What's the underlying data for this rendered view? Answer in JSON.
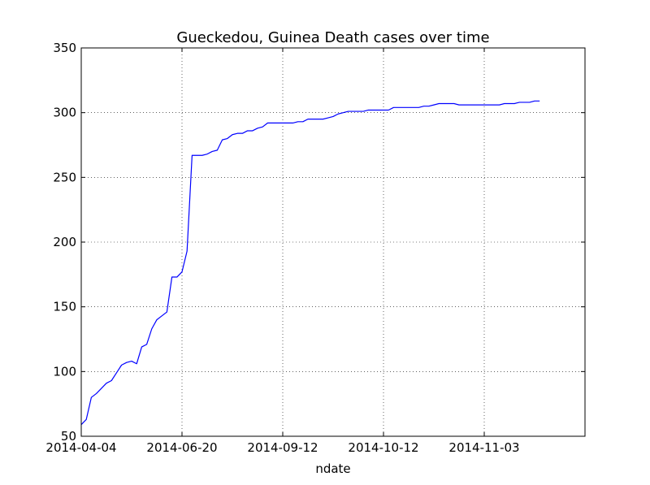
{
  "chart_data": {
    "type": "line",
    "title": "Gueckedou, Guinea Death cases over time",
    "xlabel": "ndate",
    "ylabel": "",
    "ylim": [
      50,
      350
    ],
    "yticks": [
      50,
      100,
      150,
      200,
      250,
      300,
      350
    ],
    "xtick_labels": [
      "2014-04-04",
      "2014-06-20",
      "2014-09-12",
      "2014-10-12",
      "2014-11-03"
    ],
    "xlim": [
      0,
      100
    ],
    "xtick_positions": [
      0,
      20,
      40,
      60,
      80
    ],
    "grid": true,
    "line_color": "#0000ff",
    "series": [
      {
        "x": [
          0,
          1,
          2,
          3,
          4,
          5,
          6,
          7,
          8,
          9,
          10,
          11,
          12,
          13,
          14,
          15,
          16,
          17,
          18,
          19,
          20,
          21,
          22,
          23,
          24,
          25,
          26,
          27,
          28,
          29,
          30,
          31,
          32,
          33,
          34,
          35,
          36,
          37,
          38,
          39,
          40,
          41,
          42,
          43,
          44,
          45,
          46,
          47,
          48,
          49,
          50,
          51,
          52,
          53,
          54,
          55,
          56,
          57,
          58,
          59,
          60,
          61,
          62,
          63,
          64,
          65,
          66,
          67,
          68,
          69,
          70,
          71,
          72,
          73,
          74,
          75,
          76,
          77,
          78,
          79,
          80,
          81,
          82,
          83,
          84,
          85,
          86,
          87,
          88,
          89,
          90,
          91
        ],
        "values": [
          59,
          63,
          80,
          83,
          87,
          91,
          93,
          99,
          105,
          107,
          108,
          106,
          119,
          121,
          133,
          140,
          143,
          146,
          173,
          173,
          177,
          193,
          267,
          267,
          267,
          268,
          270,
          271,
          279,
          280,
          283,
          284,
          284,
          286,
          286,
          288,
          289,
          292,
          292,
          292,
          292,
          292,
          292,
          293,
          293,
          295,
          295,
          295,
          295,
          296,
          297,
          299,
          300,
          301,
          301,
          301,
          301,
          302,
          302,
          302,
          302,
          302,
          304,
          304,
          304,
          304,
          304,
          304,
          305,
          305,
          306,
          307,
          307,
          307,
          307,
          306,
          306,
          306,
          306,
          306,
          306,
          306,
          306,
          306,
          307,
          307,
          307,
          308,
          308,
          308,
          309,
          309
        ]
      }
    ]
  }
}
